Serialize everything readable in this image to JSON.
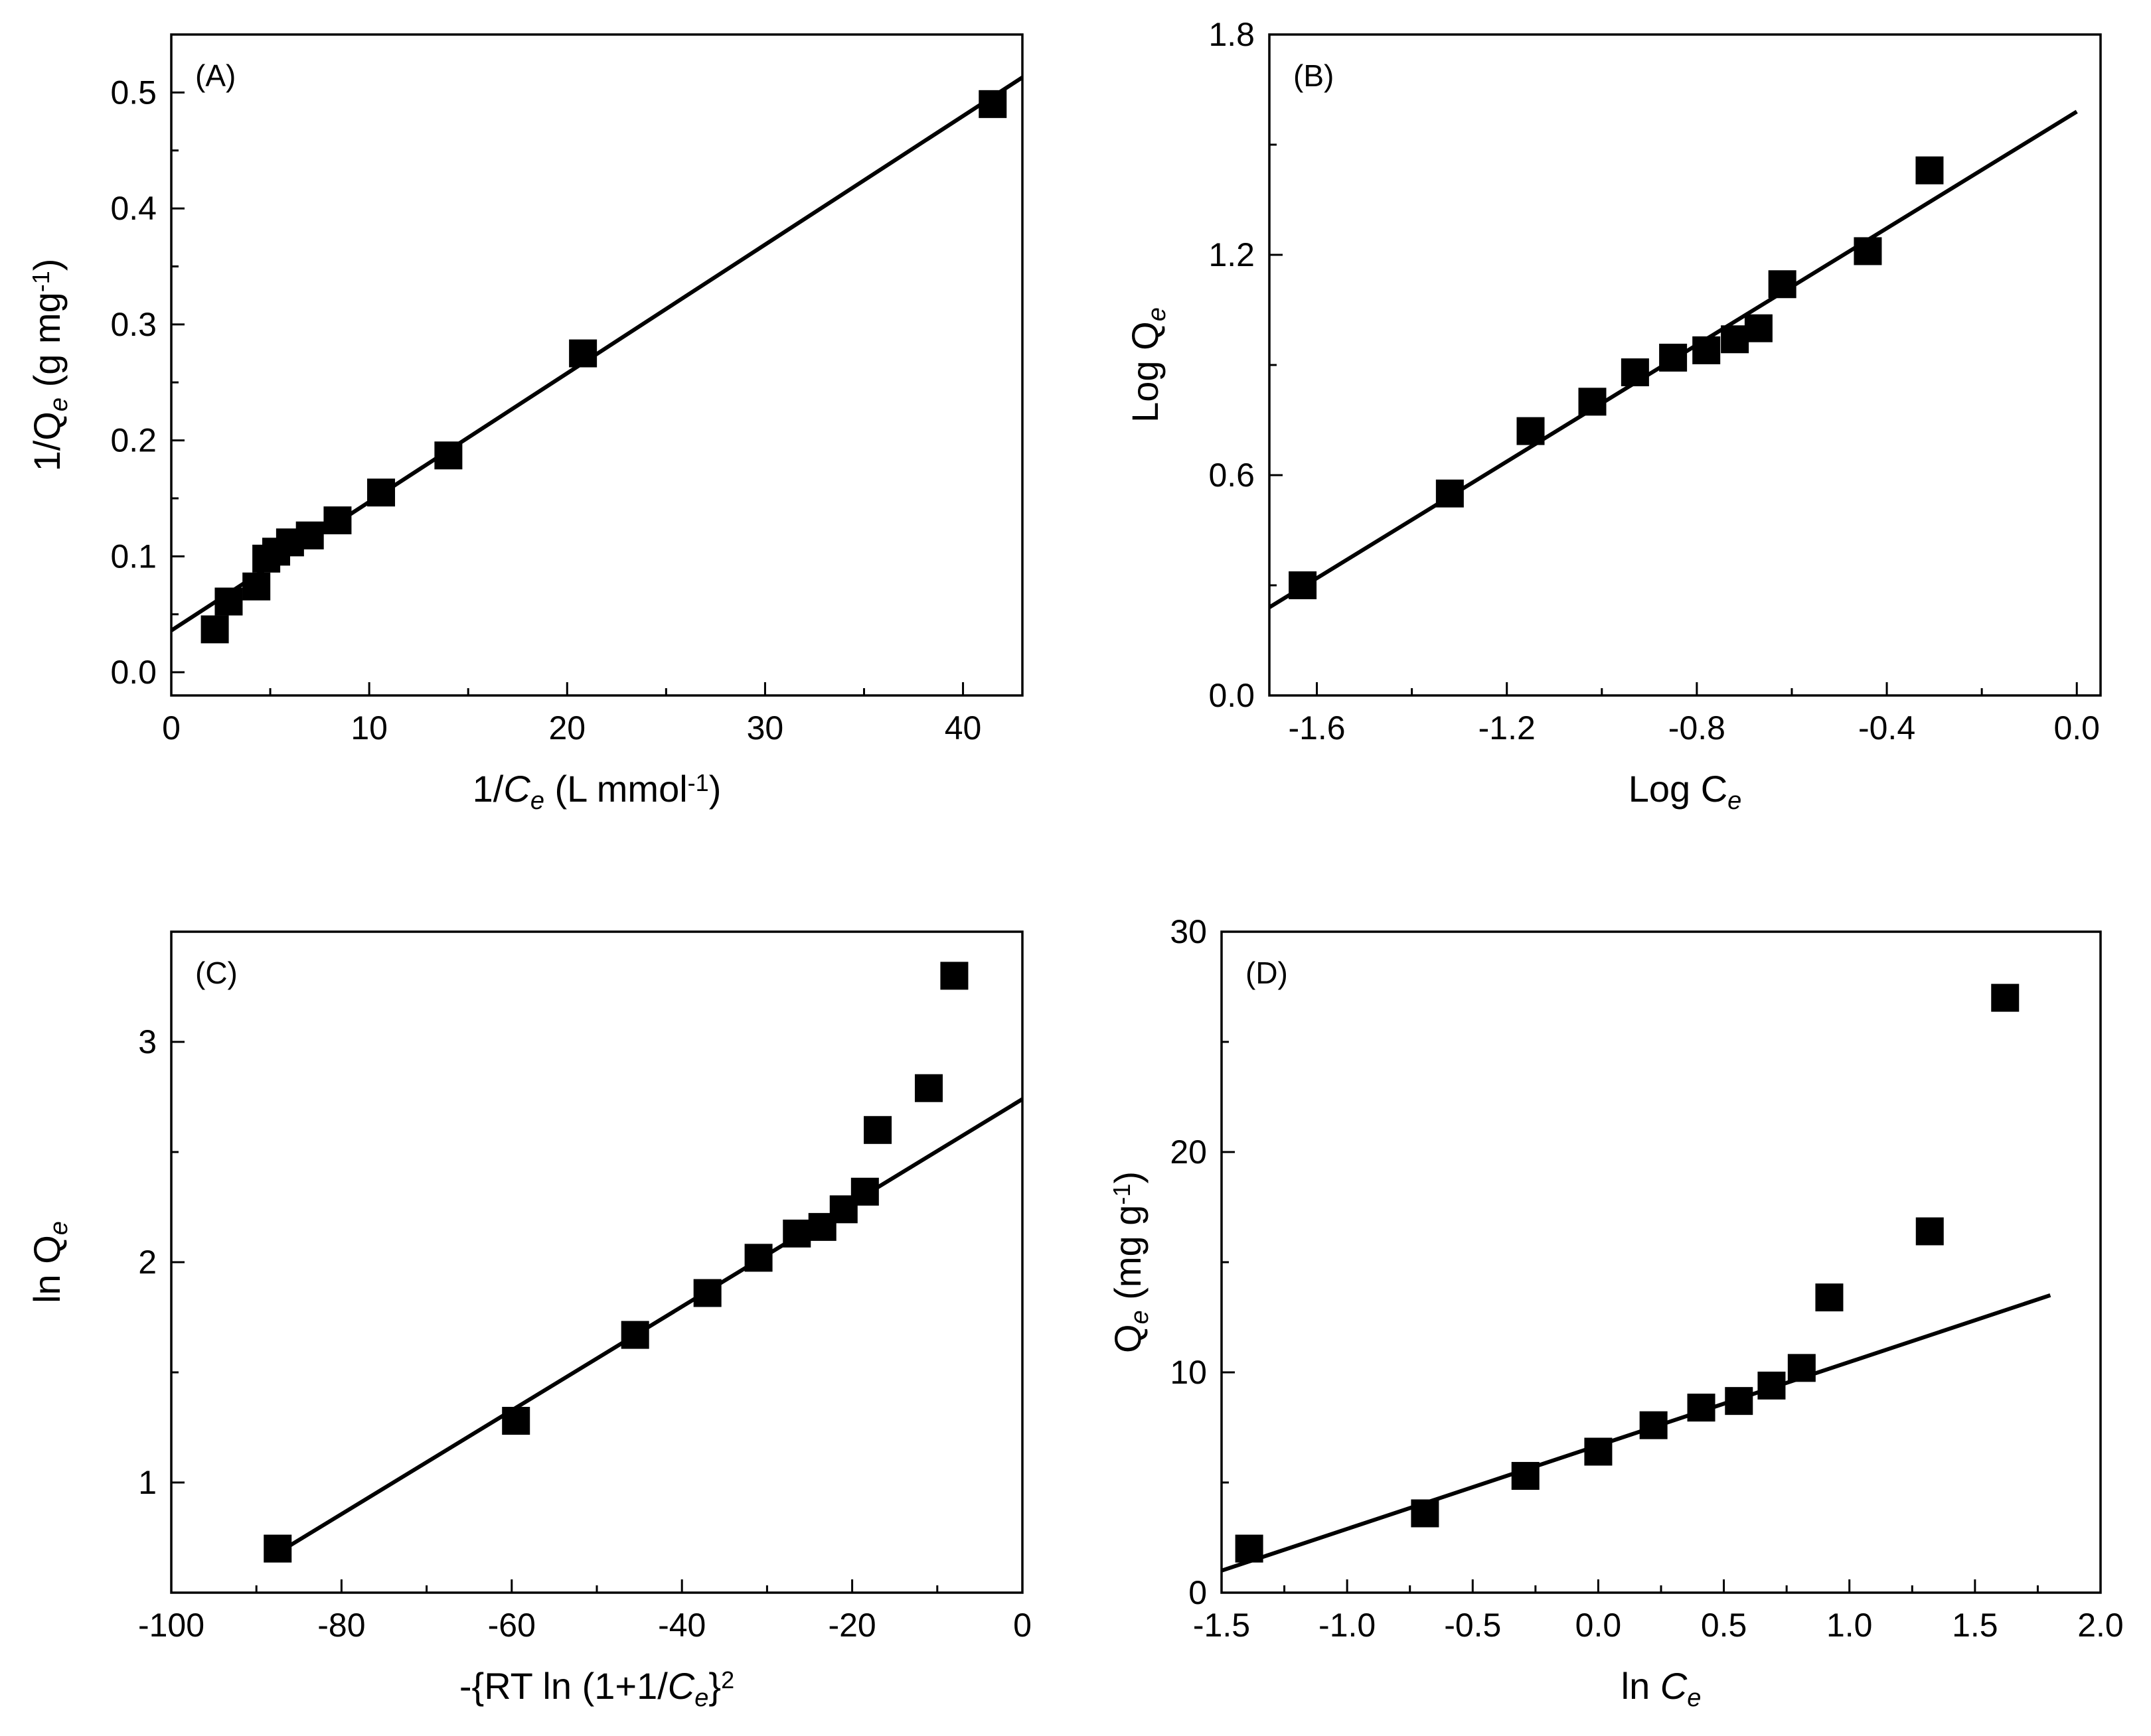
{
  "chart_data": [
    {
      "id": "A",
      "type": "scatter",
      "panel_label": "(A)",
      "xlabel": {
        "pre": "1/",
        "italic": "C",
        "sub": "e",
        "post": " (L mmol",
        "sup": "-1",
        "end": ")"
      },
      "ylabel": {
        "pre": "1/Q",
        "sub": "e",
        "post": " (g mg",
        "sup": "-1",
        "end": ")"
      },
      "xlim": [
        0,
        43
      ],
      "ylim": [
        -0.02,
        0.55
      ],
      "xticks": [
        0,
        10,
        20,
        30,
        40
      ],
      "xtick_labels": [
        "0",
        "10",
        "20",
        "30",
        "40"
      ],
      "yticks": [
        0.0,
        0.1,
        0.2,
        0.3,
        0.4,
        0.5
      ],
      "ytick_labels": [
        "0.0",
        "0.1",
        "0.2",
        "0.3",
        "0.4",
        "0.5"
      ],
      "x": [
        2.2,
        2.9,
        4.3,
        4.8,
        5.3,
        6.0,
        7.0,
        8.4,
        10.6,
        14.0,
        20.8,
        41.5
      ],
      "y": [
        0.037,
        0.061,
        0.074,
        0.098,
        0.104,
        0.112,
        0.118,
        0.131,
        0.155,
        0.187,
        0.275,
        0.49
      ],
      "fit": {
        "x": [
          0,
          43
        ],
        "y": [
          0.036,
          0.513
        ]
      }
    },
    {
      "id": "B",
      "type": "scatter",
      "panel_label": "(B)",
      "xlabel": {
        "pre": "Log C",
        "sub": "e"
      },
      "ylabel": {
        "pre": "Log Q",
        "sub": "e"
      },
      "xlim": [
        -1.7,
        0.05
      ],
      "ylim": [
        0,
        1.8
      ],
      "xticks": [
        -1.6,
        -1.2,
        -0.8,
        -0.4,
        0.0
      ],
      "xtick_labels": [
        "-1.6",
        "-1.2",
        "-0.8",
        "-0.4",
        "0.0"
      ],
      "yticks": [
        0.0,
        0.6,
        1.2,
        1.8
      ],
      "ytick_labels": [
        "0.0",
        "0.6",
        "1.2",
        "1.8"
      ],
      "x": [
        -1.63,
        -1.32,
        -1.15,
        -1.02,
        -0.93,
        -0.85,
        -0.78,
        -0.72,
        -0.67,
        -0.62,
        -0.44,
        -0.31
      ],
      "y": [
        0.3,
        0.55,
        0.72,
        0.8,
        0.88,
        0.92,
        0.94,
        0.97,
        1.0,
        1.12,
        1.21,
        1.43
      ],
      "fit": {
        "x": [
          -1.7,
          0.0
        ],
        "y": [
          0.24,
          1.59
        ]
      }
    },
    {
      "id": "C",
      "type": "scatter",
      "panel_label": "(C)",
      "xlabel": {
        "pre": "-{RT ln (1+1/",
        "italic": "C",
        "sub": "e",
        "post": "}",
        "sup": "2"
      },
      "ylabel": {
        "pre": "ln Q",
        "sub": "e"
      },
      "xlim": [
        -100,
        0
      ],
      "ylim": [
        0.5,
        3.5
      ],
      "xticks": [
        -100,
        -80,
        -60,
        -40,
        -20,
        0
      ],
      "xtick_labels": [
        "-100",
        "-80",
        "-60",
        "-40",
        "-20",
        "0"
      ],
      "yticks": [
        1,
        2,
        3
      ],
      "ytick_labels": [
        "1",
        "2",
        "3"
      ],
      "x": [
        -87.5,
        -59.5,
        -45.5,
        -37.0,
        -31.0,
        -26.5,
        -23.5,
        -21.0,
        -18.5,
        -17.0,
        -11.0,
        -8.0
      ],
      "y": [
        0.7,
        1.28,
        1.67,
        1.86,
        2.02,
        2.13,
        2.16,
        2.24,
        2.32,
        2.6,
        2.79,
        3.3
      ],
      "fit": {
        "x": [
          -87.5,
          0
        ],
        "y": [
          0.68,
          2.74
        ]
      }
    },
    {
      "id": "D",
      "type": "scatter",
      "panel_label": "(D)",
      "xlabel": {
        "pre": "ln ",
        "italic": "C",
        "sub": "e"
      },
      "ylabel": {
        "pre": "Q",
        "sub": "e",
        "post": " (mg g",
        "sup": "-1",
        "end": ")"
      },
      "xlim": [
        -1.5,
        2.0
      ],
      "ylim": [
        0,
        30
      ],
      "xticks": [
        -1.5,
        -1.0,
        -0.5,
        0.0,
        0.5,
        1.0,
        1.5,
        2.0
      ],
      "xtick_labels": [
        "-1.5",
        "-1.0",
        "-0.5",
        "0.0",
        "0.5",
        "1.0",
        "1.5",
        "2.0"
      ],
      "yticks": [
        0,
        10,
        20,
        30
      ],
      "ytick_labels": [
        "0",
        "10",
        "20",
        "30"
      ],
      "x": [
        -1.39,
        -0.69,
        -0.29,
        0.0,
        0.22,
        0.41,
        0.56,
        0.69,
        0.81,
        0.92,
        1.32,
        1.62
      ],
      "y": [
        2.0,
        3.6,
        5.3,
        6.4,
        7.6,
        8.4,
        8.7,
        9.4,
        10.2,
        13.4,
        16.4,
        27.0
      ],
      "fit": {
        "x": [
          -1.5,
          1.8
        ],
        "y": [
          1.0,
          13.5
        ]
      }
    }
  ]
}
